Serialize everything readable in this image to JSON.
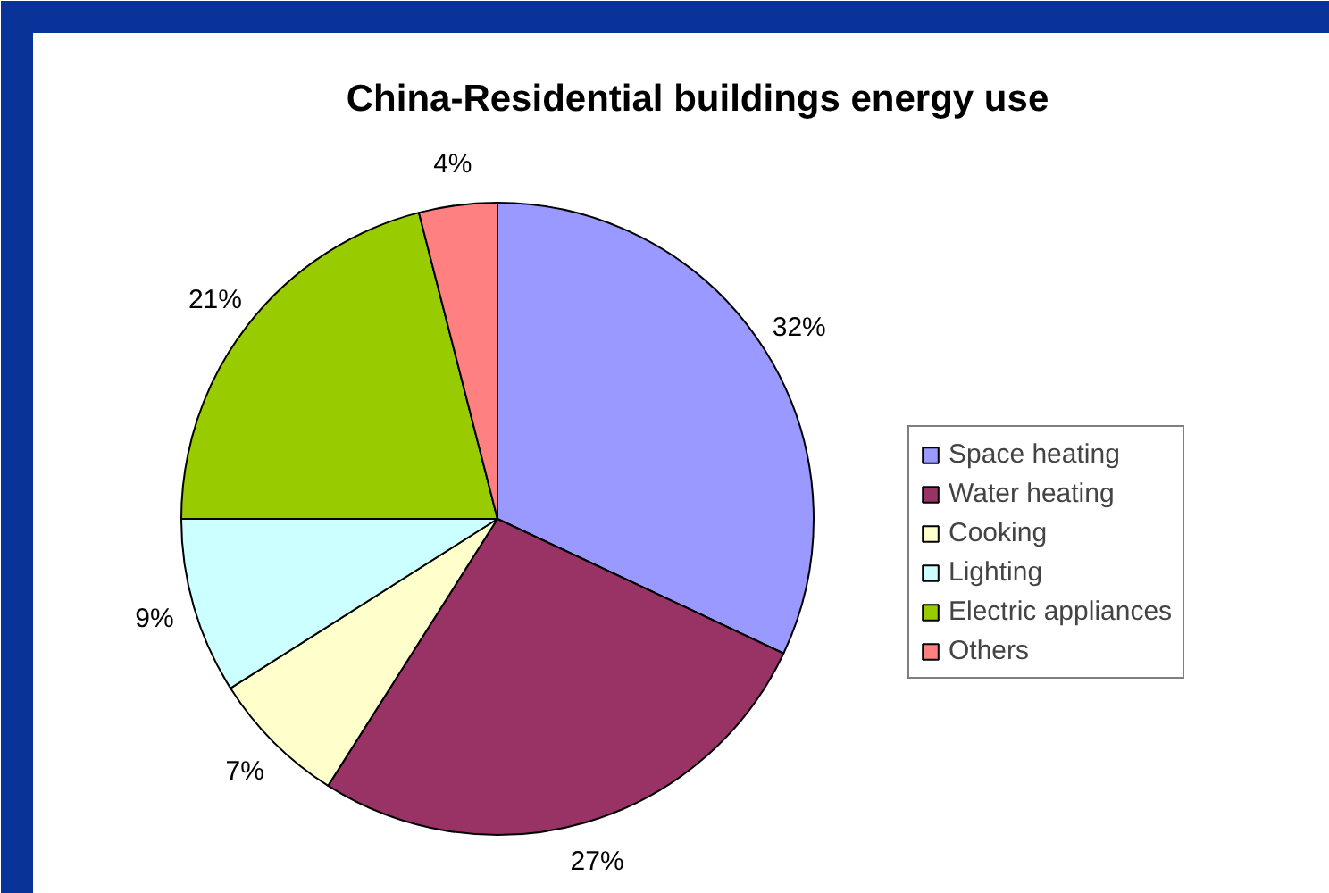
{
  "chart_data": {
    "type": "pie",
    "title": "China-Residential buildings energy use",
    "categories": [
      "Space heating",
      "Water heating",
      "Cooking",
      "Lighting",
      "Electric appliances",
      "Others"
    ],
    "values": [
      32,
      27,
      7,
      9,
      21,
      4
    ],
    "colors": [
      "#9999ff",
      "#993366",
      "#ffffcc",
      "#ccffff",
      "#99cc00",
      "#ff8080"
    ],
    "value_labels": [
      "32%",
      "27%",
      "7%",
      "9%",
      "21%",
      "4%"
    ],
    "legend": "right"
  }
}
